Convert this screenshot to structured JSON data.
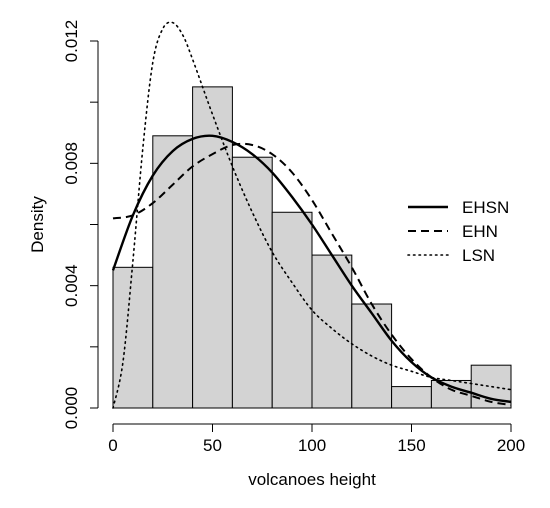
{
  "chart_data": {
    "type": "histogram",
    "xlabel": "volcanoes height",
    "ylabel": "Density",
    "xlim": [
      0,
      200
    ],
    "ylim": [
      0,
      0.012
    ],
    "x_ticks": [
      0,
      50,
      100,
      150,
      200
    ],
    "x_tick_labels": [
      "0",
      "50",
      "100",
      "150",
      "200"
    ],
    "y_ticks": [
      0,
      0.004,
      0.008,
      0.012
    ],
    "y_tick_labels": [
      "0.000",
      "0.004",
      "0.008",
      "0.012"
    ],
    "bar_color": "#d3d3d3",
    "bins": [
      {
        "start": 0,
        "end": 20,
        "density": 0.0046
      },
      {
        "start": 20,
        "end": 40,
        "density": 0.0089
      },
      {
        "start": 40,
        "end": 60,
        "density": 0.0105
      },
      {
        "start": 60,
        "end": 80,
        "density": 0.0082
      },
      {
        "start": 80,
        "end": 100,
        "density": 0.0064
      },
      {
        "start": 100,
        "end": 120,
        "density": 0.005
      },
      {
        "start": 120,
        "end": 140,
        "density": 0.0034
      },
      {
        "start": 140,
        "end": 160,
        "density": 0.0007
      },
      {
        "start": 160,
        "end": 180,
        "density": 0.0009
      },
      {
        "start": 180,
        "end": 200,
        "density": 0.0014
      }
    ],
    "legend_position": "right",
    "series": [
      {
        "name": "EHSN",
        "linestyle": "solid",
        "x": [
          0,
          10,
          20,
          30,
          40,
          50,
          60,
          70,
          80,
          90,
          100,
          110,
          120,
          130,
          140,
          150,
          160,
          170,
          180,
          190,
          200
        ],
        "y": [
          0.0045,
          0.0063,
          0.0076,
          0.0084,
          0.0088,
          0.0089,
          0.0087,
          0.0083,
          0.0077,
          0.0069,
          0.006,
          0.005,
          0.004,
          0.0031,
          0.0022,
          0.0015,
          0.001,
          0.0007,
          0.0005,
          0.0003,
          0.0002
        ]
      },
      {
        "name": "EHN",
        "linestyle": "dashed",
        "x": [
          0,
          10,
          20,
          30,
          40,
          50,
          60,
          70,
          80,
          90,
          100,
          110,
          120,
          130,
          140,
          150,
          160,
          170,
          180,
          190,
          200
        ],
        "y": [
          0.0062,
          0.0063,
          0.0067,
          0.0073,
          0.0079,
          0.0083,
          0.0086,
          0.0086,
          0.0083,
          0.0077,
          0.0068,
          0.0057,
          0.0046,
          0.0034,
          0.0024,
          0.0016,
          0.001,
          0.0006,
          0.0004,
          0.0002,
          0.0001
        ]
      },
      {
        "name": "LSN",
        "linestyle": "dotted",
        "x": [
          0,
          5,
          10,
          15,
          20,
          25,
          30,
          35,
          40,
          50,
          60,
          70,
          80,
          90,
          100,
          110,
          120,
          130,
          140,
          150,
          160,
          170,
          180,
          190,
          200
        ],
        "y": [
          0.0,
          0.0015,
          0.0048,
          0.0085,
          0.0113,
          0.0124,
          0.0126,
          0.0122,
          0.0114,
          0.0096,
          0.0079,
          0.0064,
          0.0051,
          0.0041,
          0.0032,
          0.0026,
          0.0021,
          0.0017,
          0.0014,
          0.0012,
          0.001,
          0.0009,
          0.0008,
          0.0007,
          0.0006
        ]
      }
    ]
  }
}
